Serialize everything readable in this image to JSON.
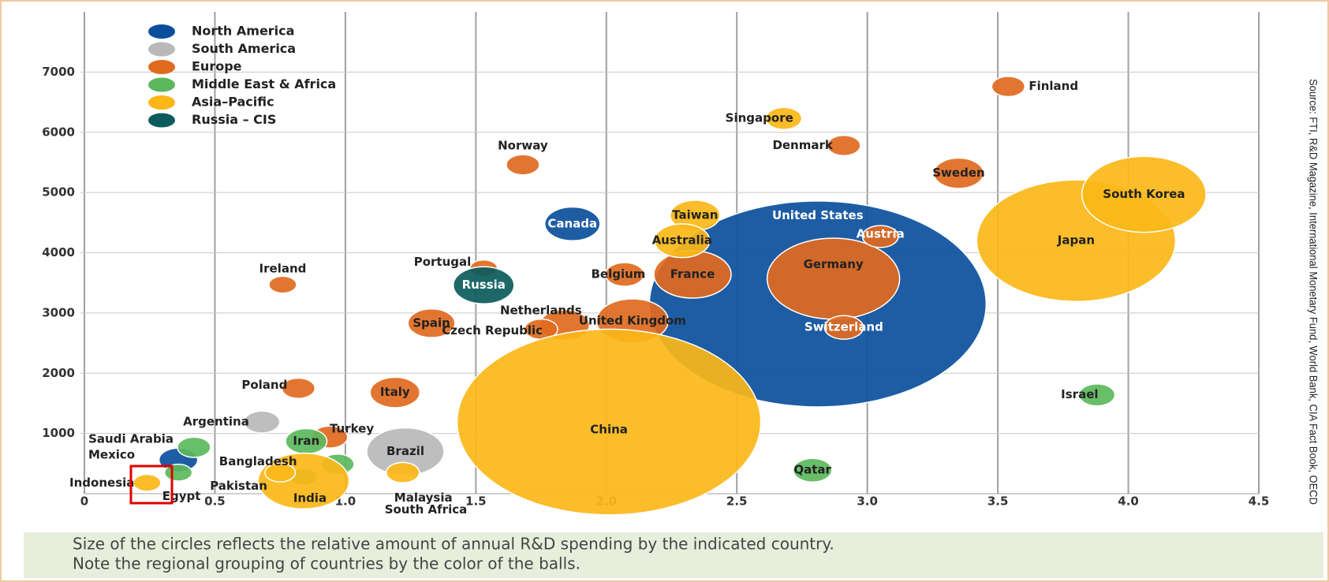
{
  "chart_data": {
    "type": "bubble",
    "xlim": [
      0,
      4.5
    ],
    "xticks": [
      0,
      0.5,
      {
        "value": 1,
        "label": "1.0"
      },
      1.5,
      {
        "value": 2,
        "label": "2.0"
      },
      2.5,
      {
        "value": 3,
        "label": "3.0"
      },
      3.5,
      {
        "value": 4,
        "label": "4.0"
      },
      4.5
    ],
    "ylim": [
      0,
      8000
    ],
    "yticks": [
      1000,
      2000,
      3000,
      4000,
      5000,
      6000,
      7000
    ],
    "grid": true,
    "legend": "upper left",
    "source": "Source: FTI, R&D Magazine, International Monetary Fund, World Bank, CIA Fact Book, OECD",
    "caption": [
      "Size of the circles reflects the relative amount of annual R&D spending by the indicated country.",
      "Note the regional grouping of countries by the color of the balls."
    ],
    "series": [
      {
        "name": "North America",
        "color": "#0b4f9c",
        "points": [
          {
            "name": "United States",
            "x": 2.81,
            "y": 3150,
            "size": 122
          },
          {
            "name": "Canada",
            "x": 1.87,
            "y": 4480,
            "size": 20
          },
          {
            "name": "Mexico",
            "x": 0.36,
            "y": 560,
            "size": 14
          }
        ]
      },
      {
        "name": "South America",
        "color": "#b9b9b9",
        "points": [
          {
            "name": "Brazil",
            "x": 1.23,
            "y": 700,
            "size": 28
          },
          {
            "name": "Argentina",
            "x": 0.68,
            "y": 1190,
            "size": 13
          }
        ]
      },
      {
        "name": "Europe",
        "color": "#e06a1f",
        "points": [
          {
            "name": "Germany",
            "x": 2.87,
            "y": 3570,
            "size": 48
          },
          {
            "name": "France",
            "x": 2.33,
            "y": 3640,
            "size": 28
          },
          {
            "name": "United Kingdom",
            "x": 2.1,
            "y": 2870,
            "size": 26
          },
          {
            "name": "Italy",
            "x": 1.19,
            "y": 1680,
            "size": 18
          },
          {
            "name": "Spain",
            "x": 1.33,
            "y": 2830,
            "size": 17
          },
          {
            "name": "Netherlands",
            "x": 1.84,
            "y": 2800,
            "size": 18
          },
          {
            "name": "Sweden",
            "x": 3.35,
            "y": 5320,
            "size": 18
          },
          {
            "name": "Belgium",
            "x": 2.07,
            "y": 3640,
            "size": 14
          },
          {
            "name": "Switzerland",
            "x": 2.91,
            "y": 2760,
            "size": 14
          },
          {
            "name": "Austria",
            "x": 3.05,
            "y": 4270,
            "size": 13
          },
          {
            "name": "Finland",
            "x": 3.54,
            "y": 6760,
            "size": 12
          },
          {
            "name": "Denmark",
            "x": 2.91,
            "y": 5780,
            "size": 12
          },
          {
            "name": "Norway",
            "x": 1.68,
            "y": 5460,
            "size": 12
          },
          {
            "name": "Portugal",
            "x": 1.53,
            "y": 3740,
            "size": 10
          },
          {
            "name": "Czech Republic",
            "x": 1.75,
            "y": 2730,
            "size": 12
          },
          {
            "name": "Ireland",
            "x": 0.76,
            "y": 3470,
            "size": 10
          },
          {
            "name": "Poland",
            "x": 0.82,
            "y": 1750,
            "size": 12
          },
          {
            "name": "Turkey",
            "x": 0.94,
            "y": 940,
            "size": 13
          }
        ]
      },
      {
        "name": "Middle East & Africa",
        "color": "#5cb85c",
        "points": [
          {
            "name": "Israel",
            "x": 3.88,
            "y": 1640,
            "size": 13
          },
          {
            "name": "Qatar",
            "x": 2.79,
            "y": 390,
            "size": 14
          },
          {
            "name": "Iran",
            "x": 0.85,
            "y": 870,
            "size": 15
          },
          {
            "name": "South Africa",
            "x": 0.97,
            "y": 490,
            "size": 12
          },
          {
            "name": "Saudi Arabia",
            "x": 0.42,
            "y": 770,
            "size": 12
          },
          {
            "name": "Egypt",
            "x": 0.36,
            "y": 350,
            "size": 10
          },
          {
            "name": "Pakistan",
            "x": 0.84,
            "y": 280,
            "size": 10
          }
        ]
      },
      {
        "name": "Asia–Pacific",
        "color": "#fbb718",
        "points": [
          {
            "name": "China",
            "x": 2.01,
            "y": 1190,
            "size": 110
          },
          {
            "name": "Japan",
            "x": 3.8,
            "y": 4200,
            "size": 72
          },
          {
            "name": "South Korea",
            "x": 4.06,
            "y": 4970,
            "size": 45
          },
          {
            "name": "Taiwan",
            "x": 2.34,
            "y": 4620,
            "size": 18
          },
          {
            "name": "Australia",
            "x": 2.29,
            "y": 4200,
            "size": 20
          },
          {
            "name": "Singapore",
            "x": 2.68,
            "y": 6230,
            "size": 13
          },
          {
            "name": "India",
            "x": 0.84,
            "y": 210,
            "size": 33
          },
          {
            "name": "Malaysia",
            "x": 1.22,
            "y": 350,
            "size": 12
          },
          {
            "name": "Indonesia",
            "x": 0.24,
            "y": 180,
            "size": 10
          },
          {
            "name": "Bangladesh",
            "x": 0.75,
            "y": 350,
            "size": 11
          }
        ]
      },
      {
        "name": "Russia – CIS",
        "color": "#0b5b5c",
        "points": [
          {
            "name": "Russia",
            "x": 1.53,
            "y": 3460,
            "size": 22
          }
        ]
      }
    ]
  }
}
